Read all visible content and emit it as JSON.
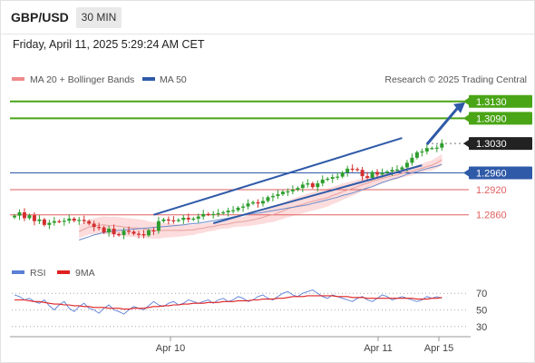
{
  "header": {
    "symbol": "GBP/USD",
    "timeframe": "30 MIN",
    "timestamp": "Friday, April 11, 2025 5:29:24 AM CET"
  },
  "legend": {
    "items": [
      {
        "label": "MA 20 + Bollinger Bands",
        "color": "#f08a8a"
      },
      {
        "label": "MA 50",
        "color": "#2f5aa8"
      }
    ],
    "source": "Research © 2025 Trading Central"
  },
  "rsi_legend": {
    "items": [
      {
        "label": "RSI",
        "color": "#5b7fd6"
      },
      {
        "label": "9MA",
        "color": "#e02020"
      }
    ]
  },
  "colors": {
    "resistance": "#4aa516",
    "pivot": "#2f5aa8",
    "support": "#e06060",
    "last": "#222222",
    "bull": "#2e9e2e",
    "bear": "#d32f2f",
    "band": "#fbd6d6"
  },
  "chart_data": [
    {
      "type": "candlestick",
      "x_ticks": [
        "Apr 10",
        "Apr 11",
        "Apr 15"
      ],
      "levels": [
        {
          "value": 1.313,
          "label": "1.3130",
          "kind": "resistance",
          "tag": "filled"
        },
        {
          "value": 1.309,
          "label": "1.3090",
          "kind": "resistance",
          "tag": "filled"
        },
        {
          "value": 1.303,
          "label": "1.3030",
          "kind": "last",
          "tag": "filled"
        },
        {
          "value": 1.296,
          "label": "1.2960",
          "kind": "pivot",
          "tag": "filled"
        },
        {
          "value": 1.292,
          "label": "1.2920",
          "kind": "support",
          "tag": "text"
        },
        {
          "value": 1.286,
          "label": "1.2860",
          "kind": "support",
          "tag": "text"
        }
      ],
      "ylim": [
        1.276,
        1.3162
      ],
      "closes": [
        1.2858,
        1.2866,
        1.2852,
        1.2859,
        1.2845,
        1.2849,
        1.2836,
        1.2841,
        1.2845,
        1.2844,
        1.2846,
        1.2851,
        1.2846,
        1.2848,
        1.2845,
        1.2839,
        1.2831,
        1.283,
        1.2818,
        1.2827,
        1.2814,
        1.2812,
        1.2822,
        1.282,
        1.2815,
        1.2814,
        1.2811,
        1.2823,
        1.2822,
        1.2845,
        1.2849,
        1.2847,
        1.2846,
        1.2848,
        1.2853,
        1.2849,
        1.2851,
        1.2856,
        1.2862,
        1.2861,
        1.2862,
        1.2864,
        1.2866,
        1.287,
        1.2871,
        1.2877,
        1.288,
        1.2887,
        1.289,
        1.2887,
        1.2893,
        1.2902,
        1.2905,
        1.2909,
        1.2915,
        1.2916,
        1.292,
        1.2924,
        1.2932,
        1.2935,
        1.2926,
        1.2935,
        1.2944,
        1.2946,
        1.295,
        1.2951,
        1.2961,
        1.297,
        1.2969,
        1.2967,
        1.2952,
        1.2948,
        1.2962,
        1.2956,
        1.296,
        1.2963,
        1.2967,
        1.2968,
        1.2973,
        1.2984,
        1.2996,
        1.3009,
        1.3011,
        1.3019,
        1.3019,
        1.302,
        1.303
      ],
      "ma20": [
        1.282,
        1.2826,
        1.2831,
        1.2833,
        1.2835,
        1.2836,
        1.2834,
        1.2834,
        1.2833,
        1.2831,
        1.283,
        1.2829,
        1.2828,
        1.2827,
        1.2824,
        1.2823,
        1.2822,
        1.2823,
        1.2823,
        1.2823,
        1.2823,
        1.2823,
        1.2824,
        1.2824,
        1.2827,
        1.2828,
        1.2831,
        1.2832,
        1.2835,
        1.2837,
        1.2838,
        1.2841,
        1.2843,
        1.2844,
        1.2846,
        1.2848,
        1.2851,
        1.2854,
        1.2858,
        1.286,
        1.2865,
        1.2869,
        1.2874,
        1.2878,
        1.2882,
        1.2885,
        1.2889,
        1.2892,
        1.2895,
        1.2898,
        1.2901,
        1.2906,
        1.291,
        1.2915,
        1.2919,
        1.2923,
        1.2927,
        1.2932,
        1.2935,
        1.294,
        1.2943,
        1.2947,
        1.295,
        1.2953,
        1.2955,
        1.2959,
        1.2962,
        1.2964,
        1.2968,
        1.2971,
        1.2975,
        1.2978,
        1.2984,
        1.2991
      ],
      "ma50": [
        1.28,
        1.2804,
        1.2808,
        1.2812,
        1.2815,
        1.2818,
        1.282,
        1.2822,
        1.2823,
        1.2824,
        1.2825,
        1.2826,
        1.2827,
        1.2828,
        1.2829,
        1.283,
        1.2831,
        1.2832,
        1.2833,
        1.2834,
        1.2835,
        1.2836,
        1.2838,
        1.2839,
        1.284,
        1.2842,
        1.2844,
        1.2846,
        1.2848,
        1.285,
        1.2852,
        1.2855,
        1.2857,
        1.2859,
        1.2861,
        1.2863,
        1.2864,
        1.2866,
        1.2868,
        1.287,
        1.2872,
        1.2874,
        1.2876,
        1.2878,
        1.288,
        1.2882,
        1.2884,
        1.2887,
        1.289,
        1.2893,
        1.2896,
        1.2899,
        1.2902,
        1.2906,
        1.2909,
        1.2912,
        1.2916,
        1.292,
        1.2924,
        1.2927,
        1.2932,
        1.2937,
        1.2941,
        1.2945,
        1.2948,
        1.2952,
        1.2957,
        1.296,
        1.2963,
        1.2967,
        1.297,
        1.2973,
        1.2976,
        1.298
      ]
    },
    {
      "type": "line",
      "title": "RSI",
      "ylim": [
        20,
        80
      ],
      "y_ticks": [
        70,
        50,
        30
      ],
      "series": [
        {
          "name": "RSI",
          "values": [
            68,
            66,
            62,
            64,
            60,
            58,
            62,
            55,
            50,
            56,
            60,
            52,
            48,
            54,
            58,
            52,
            50,
            46,
            52,
            56,
            50,
            48,
            45,
            50,
            54,
            52,
            50,
            55,
            60,
            56,
            54,
            58,
            60,
            56,
            58,
            62,
            60,
            58,
            60,
            62,
            58,
            62,
            64,
            60,
            62,
            66,
            64,
            60,
            62,
            66,
            68,
            64,
            62,
            66,
            70,
            72,
            68,
            66,
            70,
            72,
            74,
            70,
            66,
            64,
            68,
            66,
            64,
            62,
            60,
            64,
            66,
            62,
            60,
            64,
            68,
            66,
            62,
            64,
            66,
            64,
            62,
            60,
            62,
            66,
            64,
            66,
            64
          ]
        },
        {
          "name": "9MA",
          "values": [
            62,
            62,
            62,
            61,
            60,
            60,
            59,
            58,
            57,
            57,
            56,
            56,
            55,
            55,
            54,
            54,
            53,
            53,
            53,
            52,
            52,
            52,
            51,
            51,
            52,
            52,
            52,
            53,
            54,
            54,
            55,
            55,
            56,
            56,
            57,
            57,
            58,
            58,
            58,
            59,
            59,
            59,
            60,
            60,
            60,
            61,
            61,
            61,
            62,
            62,
            63,
            63,
            63,
            64,
            64,
            65,
            66,
            66,
            66,
            67,
            67,
            67,
            67,
            67,
            67,
            66,
            66,
            66,
            65,
            65,
            65,
            64,
            64,
            64,
            64,
            64,
            64,
            64,
            64,
            64,
            64,
            63,
            63,
            63,
            64,
            64,
            65
          ]
        }
      ]
    }
  ]
}
